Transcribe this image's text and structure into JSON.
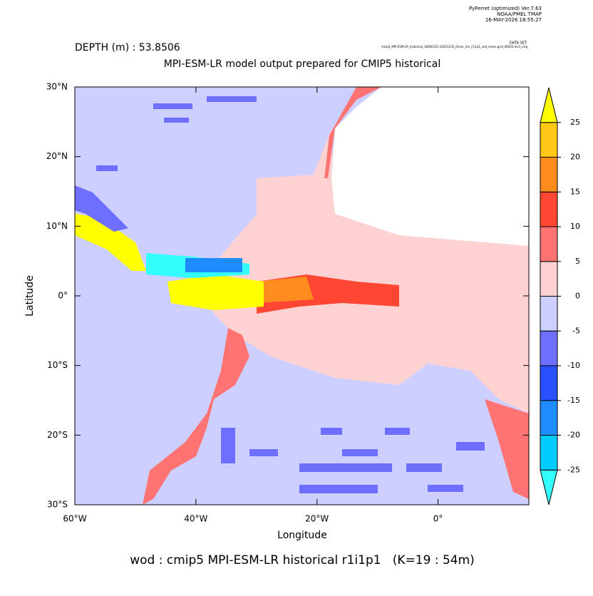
{
  "header": {
    "program": "PyFerret (optimized) Ver.7.63",
    "org": "NOAA/PMEL TMAP",
    "timestamp": "16-MAY-2026 18:55:27",
    "data_set_label": "DATA SET:",
    "data_set": "cmip5_MPI-ESM-LR_historical_18500101-20051231_0mon_1m_r1i1p1_zod_mean.grid_d0025-lev1_orig"
  },
  "chart_data": {
    "type": "map",
    "depth_label": "DEPTH (m) : 53.8506",
    "title": "MPI-ESM-LR model output prepared for CMIP5 historical",
    "x_label": "Longitude",
    "y_label": "Latitude",
    "caption": "wod : cmip5 MPI-ESM-LR historical r1i1p1   (K=19 : 54m)",
    "xlim": [
      -60,
      15
    ],
    "ylim": [
      -30,
      30
    ],
    "xticks": [
      {
        "value": -60,
        "label": "60°W"
      },
      {
        "value": -40,
        "label": "40°W"
      },
      {
        "value": -20,
        "label": "20°W"
      },
      {
        "value": 0,
        "label": "0°"
      }
    ],
    "yticks": [
      {
        "value": -30,
        "label": "30°S"
      },
      {
        "value": -20,
        "label": "20°S"
      },
      {
        "value": -10,
        "label": "10°S"
      },
      {
        "value": 0,
        "label": "0°"
      },
      {
        "value": 10,
        "label": "10°N"
      },
      {
        "value": 20,
        "label": "20°N"
      },
      {
        "value": 30,
        "label": "30°N"
      }
    ],
    "colorbar": {
      "levels": [
        -25,
        -20,
        -15,
        -10,
        -5,
        0,
        5,
        10,
        15,
        20,
        25
      ],
      "colors": [
        "#33ffff",
        "#00ccff",
        "#1e8cff",
        "#2850ff",
        "#6e6eff",
        "#cccfff",
        "#ffd2d2",
        "#ff7373",
        "#ff4632",
        "#ff8c1e",
        "#ffc814",
        "#ffff00"
      ]
    }
  }
}
